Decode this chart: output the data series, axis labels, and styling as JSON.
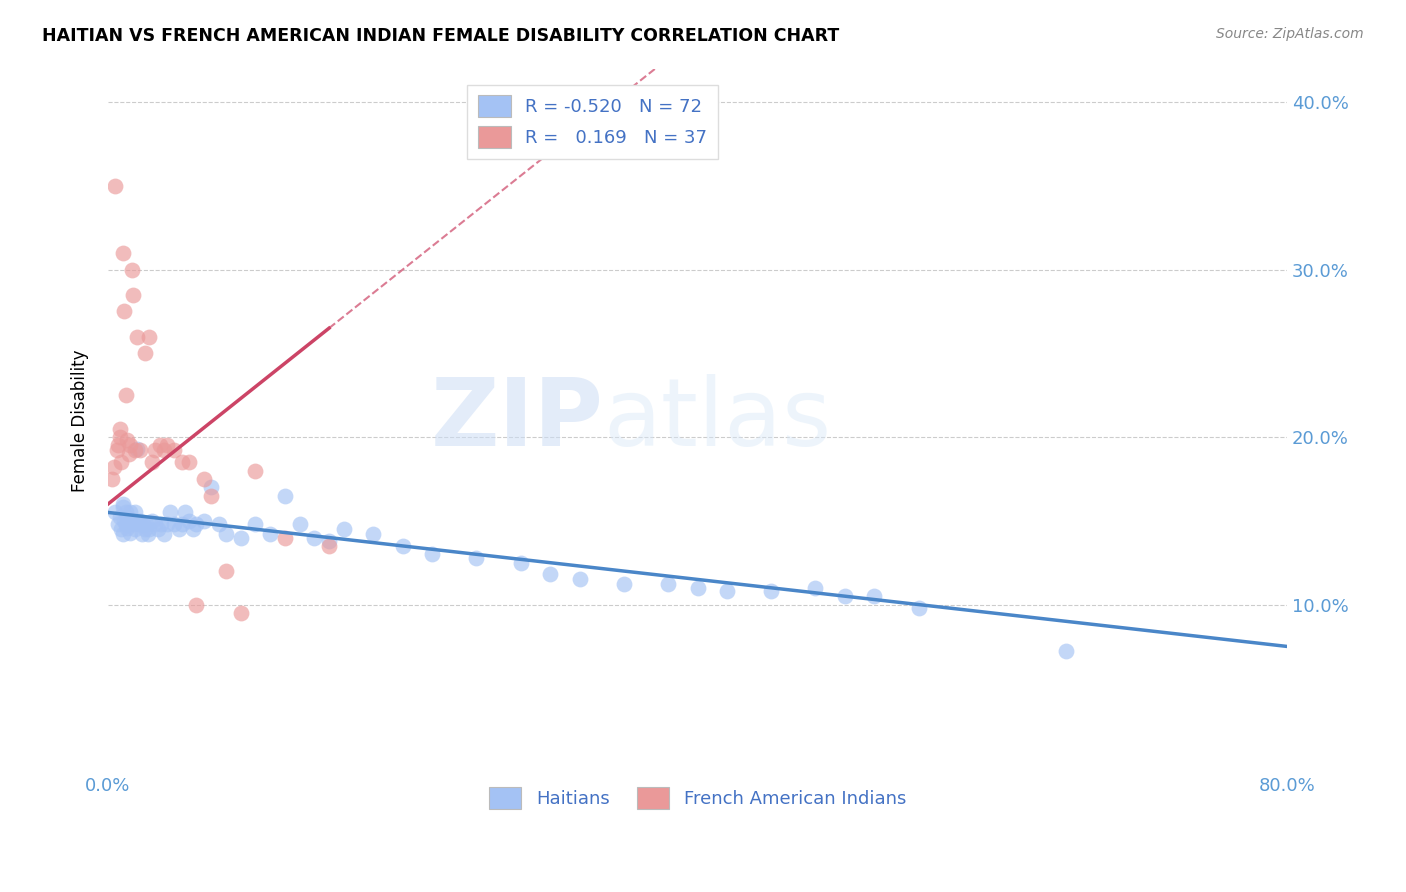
{
  "title": "HAITIAN VS FRENCH AMERICAN INDIAN FEMALE DISABILITY CORRELATION CHART",
  "source": "Source: ZipAtlas.com",
  "ylabel": "Female Disability",
  "xlim": [
    0.0,
    0.8
  ],
  "ylim": [
    0.0,
    0.42
  ],
  "blue_R": -0.52,
  "blue_N": 72,
  "pink_R": 0.169,
  "pink_N": 37,
  "blue_color": "#a4c2f4",
  "pink_color": "#ea9999",
  "blue_line_color": "#4a86c8",
  "pink_line_color": "#cc4466",
  "watermark_zip": "ZIP",
  "watermark_atlas": "atlas",
  "legend_label_blue": "Haitians",
  "legend_label_pink": "French American Indians",
  "blue_x": [
    0.005,
    0.007,
    0.008,
    0.009,
    0.01,
    0.01,
    0.01,
    0.011,
    0.012,
    0.012,
    0.013,
    0.013,
    0.014,
    0.015,
    0.015,
    0.016,
    0.017,
    0.018,
    0.018,
    0.019,
    0.02,
    0.021,
    0.022,
    0.023,
    0.024,
    0.025,
    0.026,
    0.027,
    0.028,
    0.03,
    0.032,
    0.034,
    0.036,
    0.038,
    0.04,
    0.042,
    0.045,
    0.048,
    0.05,
    0.052,
    0.055,
    0.058,
    0.06,
    0.065,
    0.07,
    0.075,
    0.08,
    0.09,
    0.1,
    0.11,
    0.12,
    0.13,
    0.14,
    0.15,
    0.16,
    0.18,
    0.2,
    0.22,
    0.25,
    0.28,
    0.3,
    0.32,
    0.35,
    0.38,
    0.4,
    0.42,
    0.45,
    0.48,
    0.5,
    0.52,
    0.55,
    0.65
  ],
  "blue_y": [
    0.155,
    0.148,
    0.152,
    0.145,
    0.16,
    0.158,
    0.142,
    0.15,
    0.155,
    0.148,
    0.152,
    0.146,
    0.148,
    0.155,
    0.143,
    0.15,
    0.148,
    0.155,
    0.145,
    0.15,
    0.193,
    0.148,
    0.15,
    0.142,
    0.148,
    0.145,
    0.148,
    0.142,
    0.145,
    0.15,
    0.148,
    0.145,
    0.148,
    0.142,
    0.148,
    0.155,
    0.148,
    0.145,
    0.148,
    0.155,
    0.15,
    0.145,
    0.148,
    0.15,
    0.17,
    0.148,
    0.142,
    0.14,
    0.148,
    0.142,
    0.165,
    0.148,
    0.14,
    0.138,
    0.145,
    0.142,
    0.135,
    0.13,
    0.128,
    0.125,
    0.118,
    0.115,
    0.112,
    0.112,
    0.11,
    0.108,
    0.108,
    0.11,
    0.105,
    0.105,
    0.098,
    0.072
  ],
  "pink_x": [
    0.003,
    0.004,
    0.005,
    0.006,
    0.007,
    0.008,
    0.008,
    0.009,
    0.01,
    0.011,
    0.012,
    0.013,
    0.014,
    0.015,
    0.016,
    0.017,
    0.018,
    0.02,
    0.022,
    0.025,
    0.028,
    0.03,
    0.032,
    0.035,
    0.038,
    0.04,
    0.045,
    0.05,
    0.055,
    0.06,
    0.065,
    0.07,
    0.08,
    0.09,
    0.1,
    0.12,
    0.15
  ],
  "pink_y": [
    0.175,
    0.182,
    0.35,
    0.192,
    0.195,
    0.2,
    0.205,
    0.185,
    0.31,
    0.275,
    0.225,
    0.198,
    0.19,
    0.195,
    0.3,
    0.285,
    0.192,
    0.26,
    0.192,
    0.25,
    0.26,
    0.185,
    0.192,
    0.195,
    0.192,
    0.195,
    0.192,
    0.185,
    0.185,
    0.1,
    0.175,
    0.165,
    0.12,
    0.095,
    0.18,
    0.14,
    0.135
  ]
}
